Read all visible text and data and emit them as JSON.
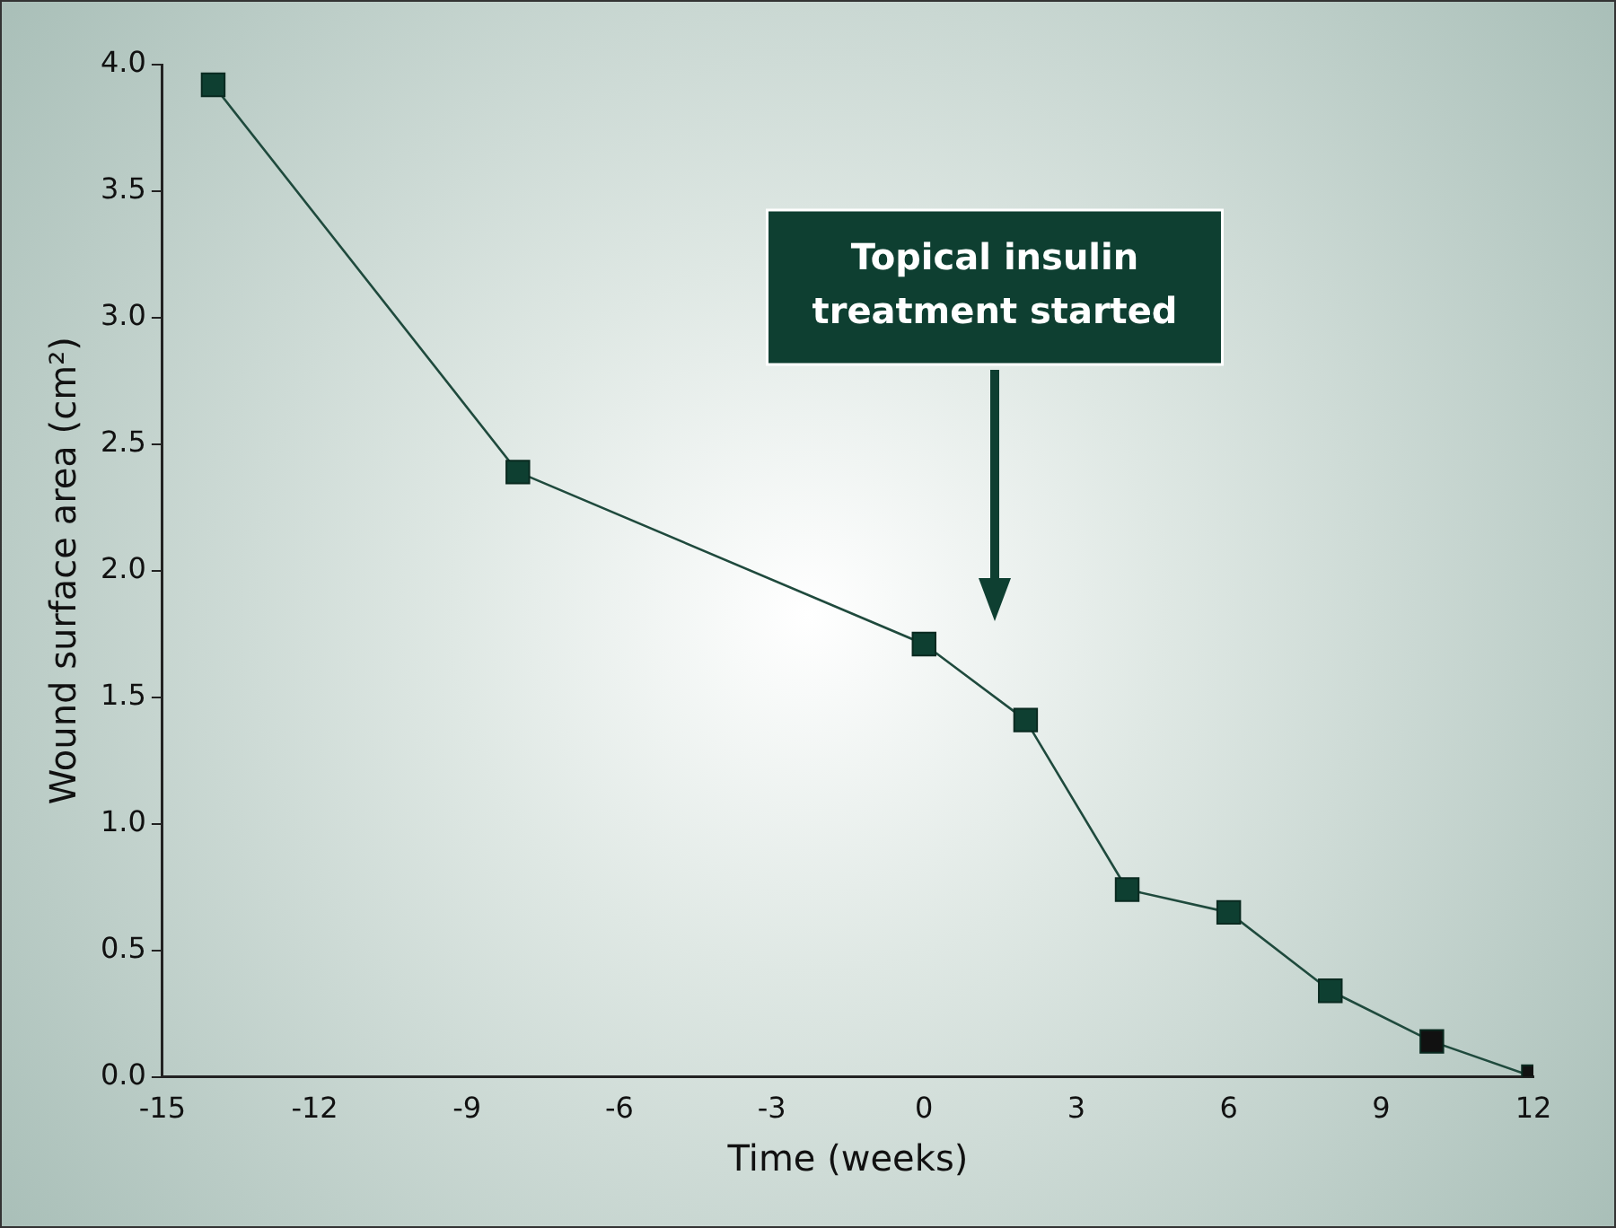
{
  "chart_data": {
    "type": "line",
    "xlabel": "Time (weeks)",
    "ylabel": "Wound surface area (cm²)",
    "x": [
      -14,
      -8,
      0,
      2,
      4,
      6,
      8,
      10,
      12
    ],
    "values": [
      3.92,
      2.39,
      1.71,
      1.41,
      0.74,
      0.65,
      0.34,
      0.14,
      0.0
    ],
    "color": "#1f4a3d",
    "colors": [
      "#0e3f31",
      "#0e3f31",
      "#0e3f31",
      "#0e3f31",
      "#0e3f31",
      "#0e3f31",
      "#0e3f31",
      "#111111",
      "#111111"
    ],
    "marker": "square",
    "line_style": "solid",
    "grid": false,
    "legend": false,
    "xlim": [
      -15,
      12
    ],
    "xticks": [
      -15,
      -12,
      -9,
      -6,
      -3,
      0,
      3,
      6,
      9,
      12
    ],
    "ylim": [
      0,
      4
    ],
    "yticks": [
      {
        "value": 0,
        "label": "0.0"
      },
      0.5,
      {
        "value": 1,
        "label": "1.0"
      },
      1.5,
      {
        "value": 2,
        "label": "2.0"
      },
      2.5,
      {
        "value": 3,
        "label": "3.0"
      },
      3.5,
      {
        "value": 4,
        "label": "4.0"
      }
    ],
    "annotations": [
      "Topical insulin treatment started"
    ]
  }
}
